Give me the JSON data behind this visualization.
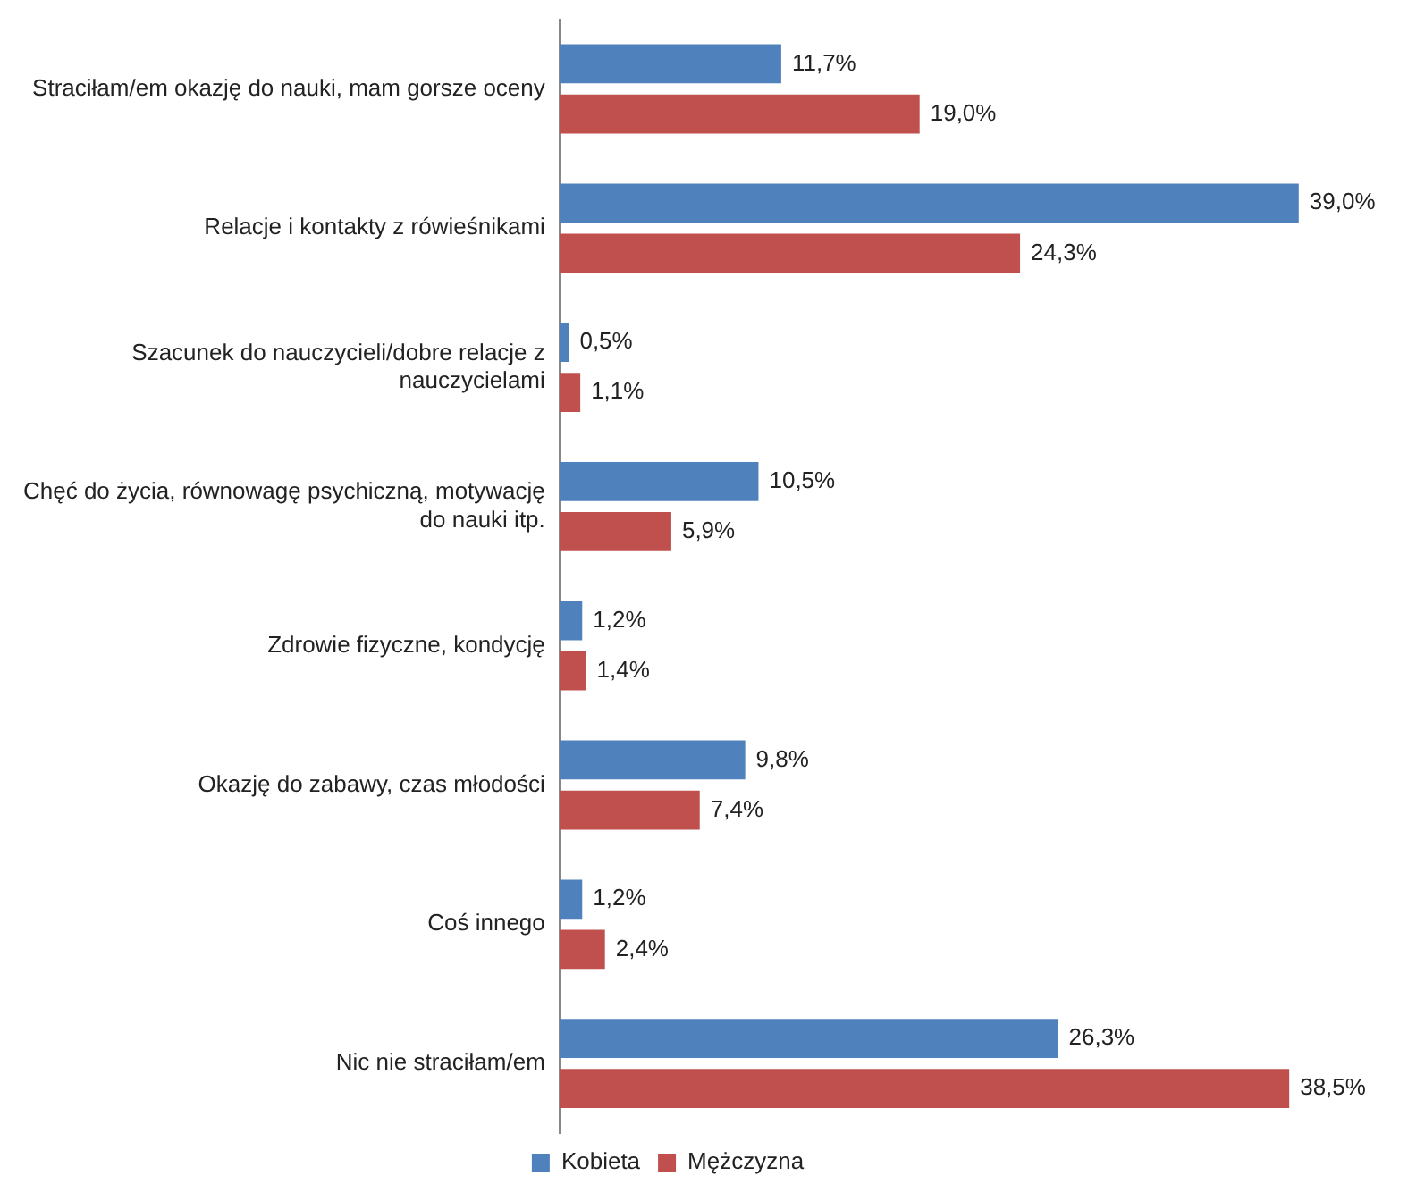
{
  "chart_data": {
    "type": "bar",
    "orientation": "horizontal",
    "legend": "bottom",
    "categories": [
      "Straciłam/em okazję do nauki, mam gorsze oceny",
      "Relacje i kontakty z rówieśnikami",
      "Szacunek do nauczycieli/dobre relacje z nauczycielami",
      "Chęć do życia, równowagę psychiczną, motywację do nauki itp.",
      "Zdrowie fizyczne, kondycję",
      "Okazję do zabawy, czas młodości",
      "Coś innego",
      "Nic nie straciłam/em"
    ],
    "series": [
      {
        "name": "Kobieta",
        "color": "#4f81bd",
        "values": [
          11.7,
          39.0,
          0.5,
          10.5,
          1.2,
          9.8,
          1.2,
          26.3
        ],
        "value_labels": [
          "11,7%",
          "39,0%",
          "0,5%",
          "10,5%",
          "1,2%",
          "9,8%",
          "1,2%",
          "26,3%"
        ]
      },
      {
        "name": "Mężczyzna",
        "color": "#c0504d",
        "values": [
          19.0,
          24.3,
          1.1,
          5.9,
          1.4,
          7.4,
          2.4,
          38.5
        ],
        "value_labels": [
          "19,0%",
          "24,3%",
          "1,1%",
          "5,9%",
          "1,4%",
          "7,4%",
          "2,4%",
          "38,5%"
        ]
      }
    ]
  }
}
